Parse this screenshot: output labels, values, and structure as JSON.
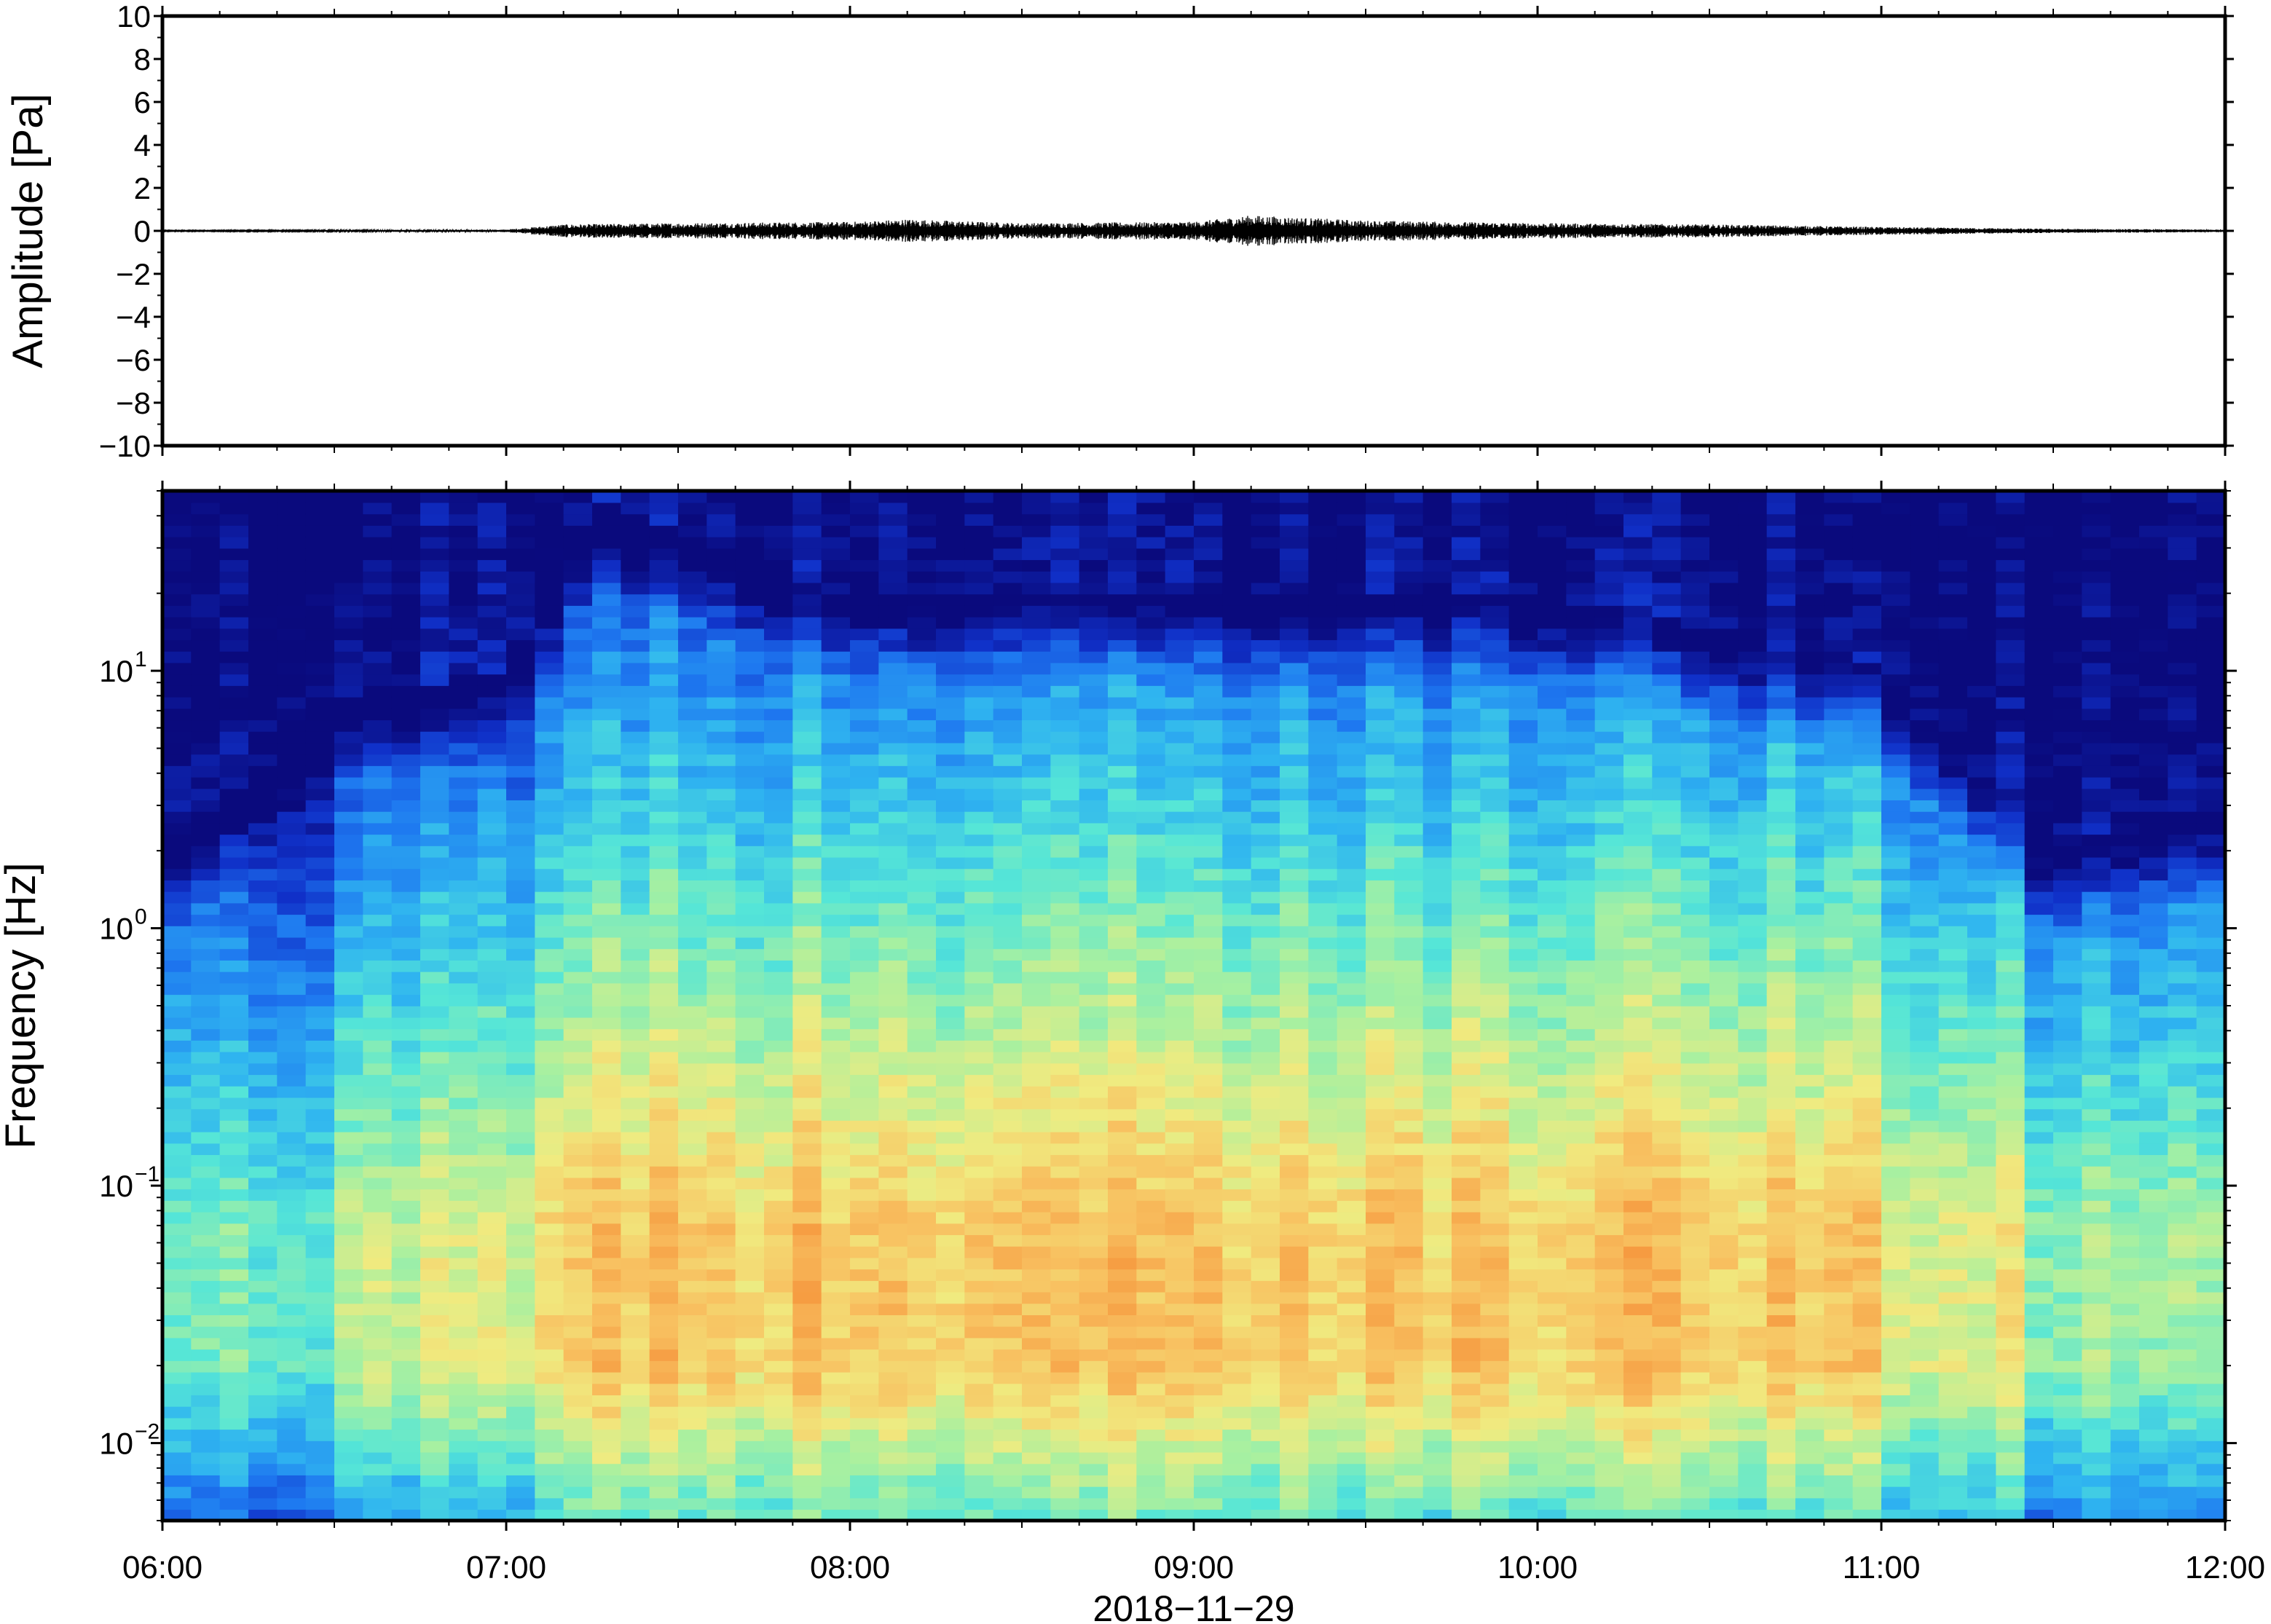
{
  "chart_data": [
    {
      "type": "line",
      "ylabel": "Amplitude [Pa]",
      "ylim": [
        -10,
        10
      ],
      "yticks": [
        10,
        8,
        6,
        4,
        2,
        0,
        -2,
        -4,
        -6,
        -8,
        -10
      ],
      "ytick_labels": [
        "10",
        "8",
        "6",
        "4",
        "2",
        "0",
        "−2",
        "−4",
        "−6",
        "−8",
        "−10"
      ],
      "xlim": [
        "06:00",
        "12:00"
      ],
      "series": [
        {
          "x": [
            "06:00",
            "06:30",
            "07:00",
            "07:10",
            "07:30",
            "08:00",
            "08:10",
            "08:30",
            "09:00",
            "09:10",
            "09:30",
            "10:00",
            "10:30",
            "11:00",
            "11:30",
            "12:00"
          ],
          "y_envelope": [
            0.02,
            0.03,
            0.05,
            0.25,
            0.3,
            0.35,
            0.45,
            0.3,
            0.35,
            0.6,
            0.4,
            0.3,
            0.25,
            0.15,
            0.08,
            0.05
          ]
        }
      ],
      "grid": false
    },
    {
      "type": "heatmap",
      "ylabel": "Frequency [Hz]",
      "xlabel": "2018−11−29",
      "y_scale": "log",
      "ylim": [
        0.005,
        50
      ],
      "yticks": [
        0.01,
        0.1,
        1,
        10
      ],
      "ytick_labels": [
        {
          "base": "10",
          "exp": "−2"
        },
        {
          "base": "10",
          "exp": "−1"
        },
        {
          "base": "10",
          "exp": "0"
        },
        {
          "base": "10",
          "exp": "1"
        }
      ],
      "xlim": [
        "06:00",
        "12:00"
      ],
      "x_tick_labels": [
        "06:00",
        "07:00",
        "08:00",
        "09:00",
        "10:00",
        "11:00",
        "12:00"
      ],
      "colormap": [
        "#0a0a7d",
        "#1030c8",
        "#1e78f0",
        "#2fb4f0",
        "#55e6d7",
        "#a8f0a0",
        "#f0eb80",
        "#f8c060",
        "#f59038"
      ],
      "profile_hours": [
        6.0,
        6.5,
        7.0,
        7.25,
        8.0,
        9.0,
        9.5,
        10.0,
        11.0,
        11.5,
        12.0
      ],
      "dominant_band_hz": [
        0.02,
        0.07
      ],
      "upper_cutoff_hz": [
        2,
        8,
        10,
        45,
        20,
        20,
        20,
        20,
        10,
        2,
        3
      ],
      "grid": false
    }
  ]
}
